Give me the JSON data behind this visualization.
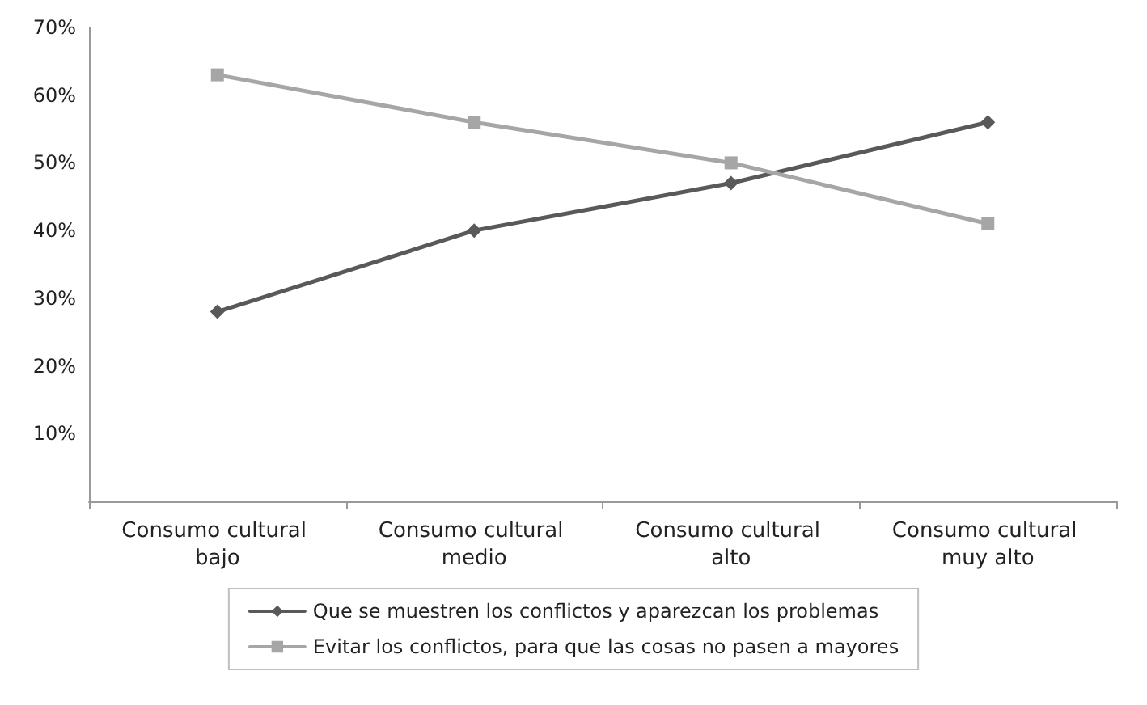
{
  "chart_data": {
    "type": "line",
    "categories": [
      "Consumo cultural bajo",
      "Consumo cultural medio",
      "Consumo cultural alto",
      "Consumo cultural muy alto"
    ],
    "series": [
      {
        "name": "Que se muestren los conflictos y aparezcan los problemas",
        "color": "#595959",
        "marker": "diamond",
        "values": [
          28,
          40,
          47,
          56
        ]
      },
      {
        "name": "Evitar los conflictos, para que las cosas no pasen a mayores",
        "color": "#a6a6a6",
        "marker": "square",
        "values": [
          63,
          56,
          50,
          41
        ]
      }
    ],
    "ylim": [
      0,
      70
    ],
    "yticks": [
      {
        "value": 0,
        "label": null
      },
      {
        "value": 10,
        "label": "10%"
      },
      {
        "value": 20,
        "label": "20%"
      },
      {
        "value": 30,
        "label": "30%"
      },
      {
        "value": 40,
        "label": "40%"
      },
      {
        "value": 50,
        "label": "50%"
      },
      {
        "value": 60,
        "label": "60%"
      },
      {
        "value": 70,
        "label": "70%"
      }
    ],
    "grid": false,
    "legend": "bottom"
  }
}
